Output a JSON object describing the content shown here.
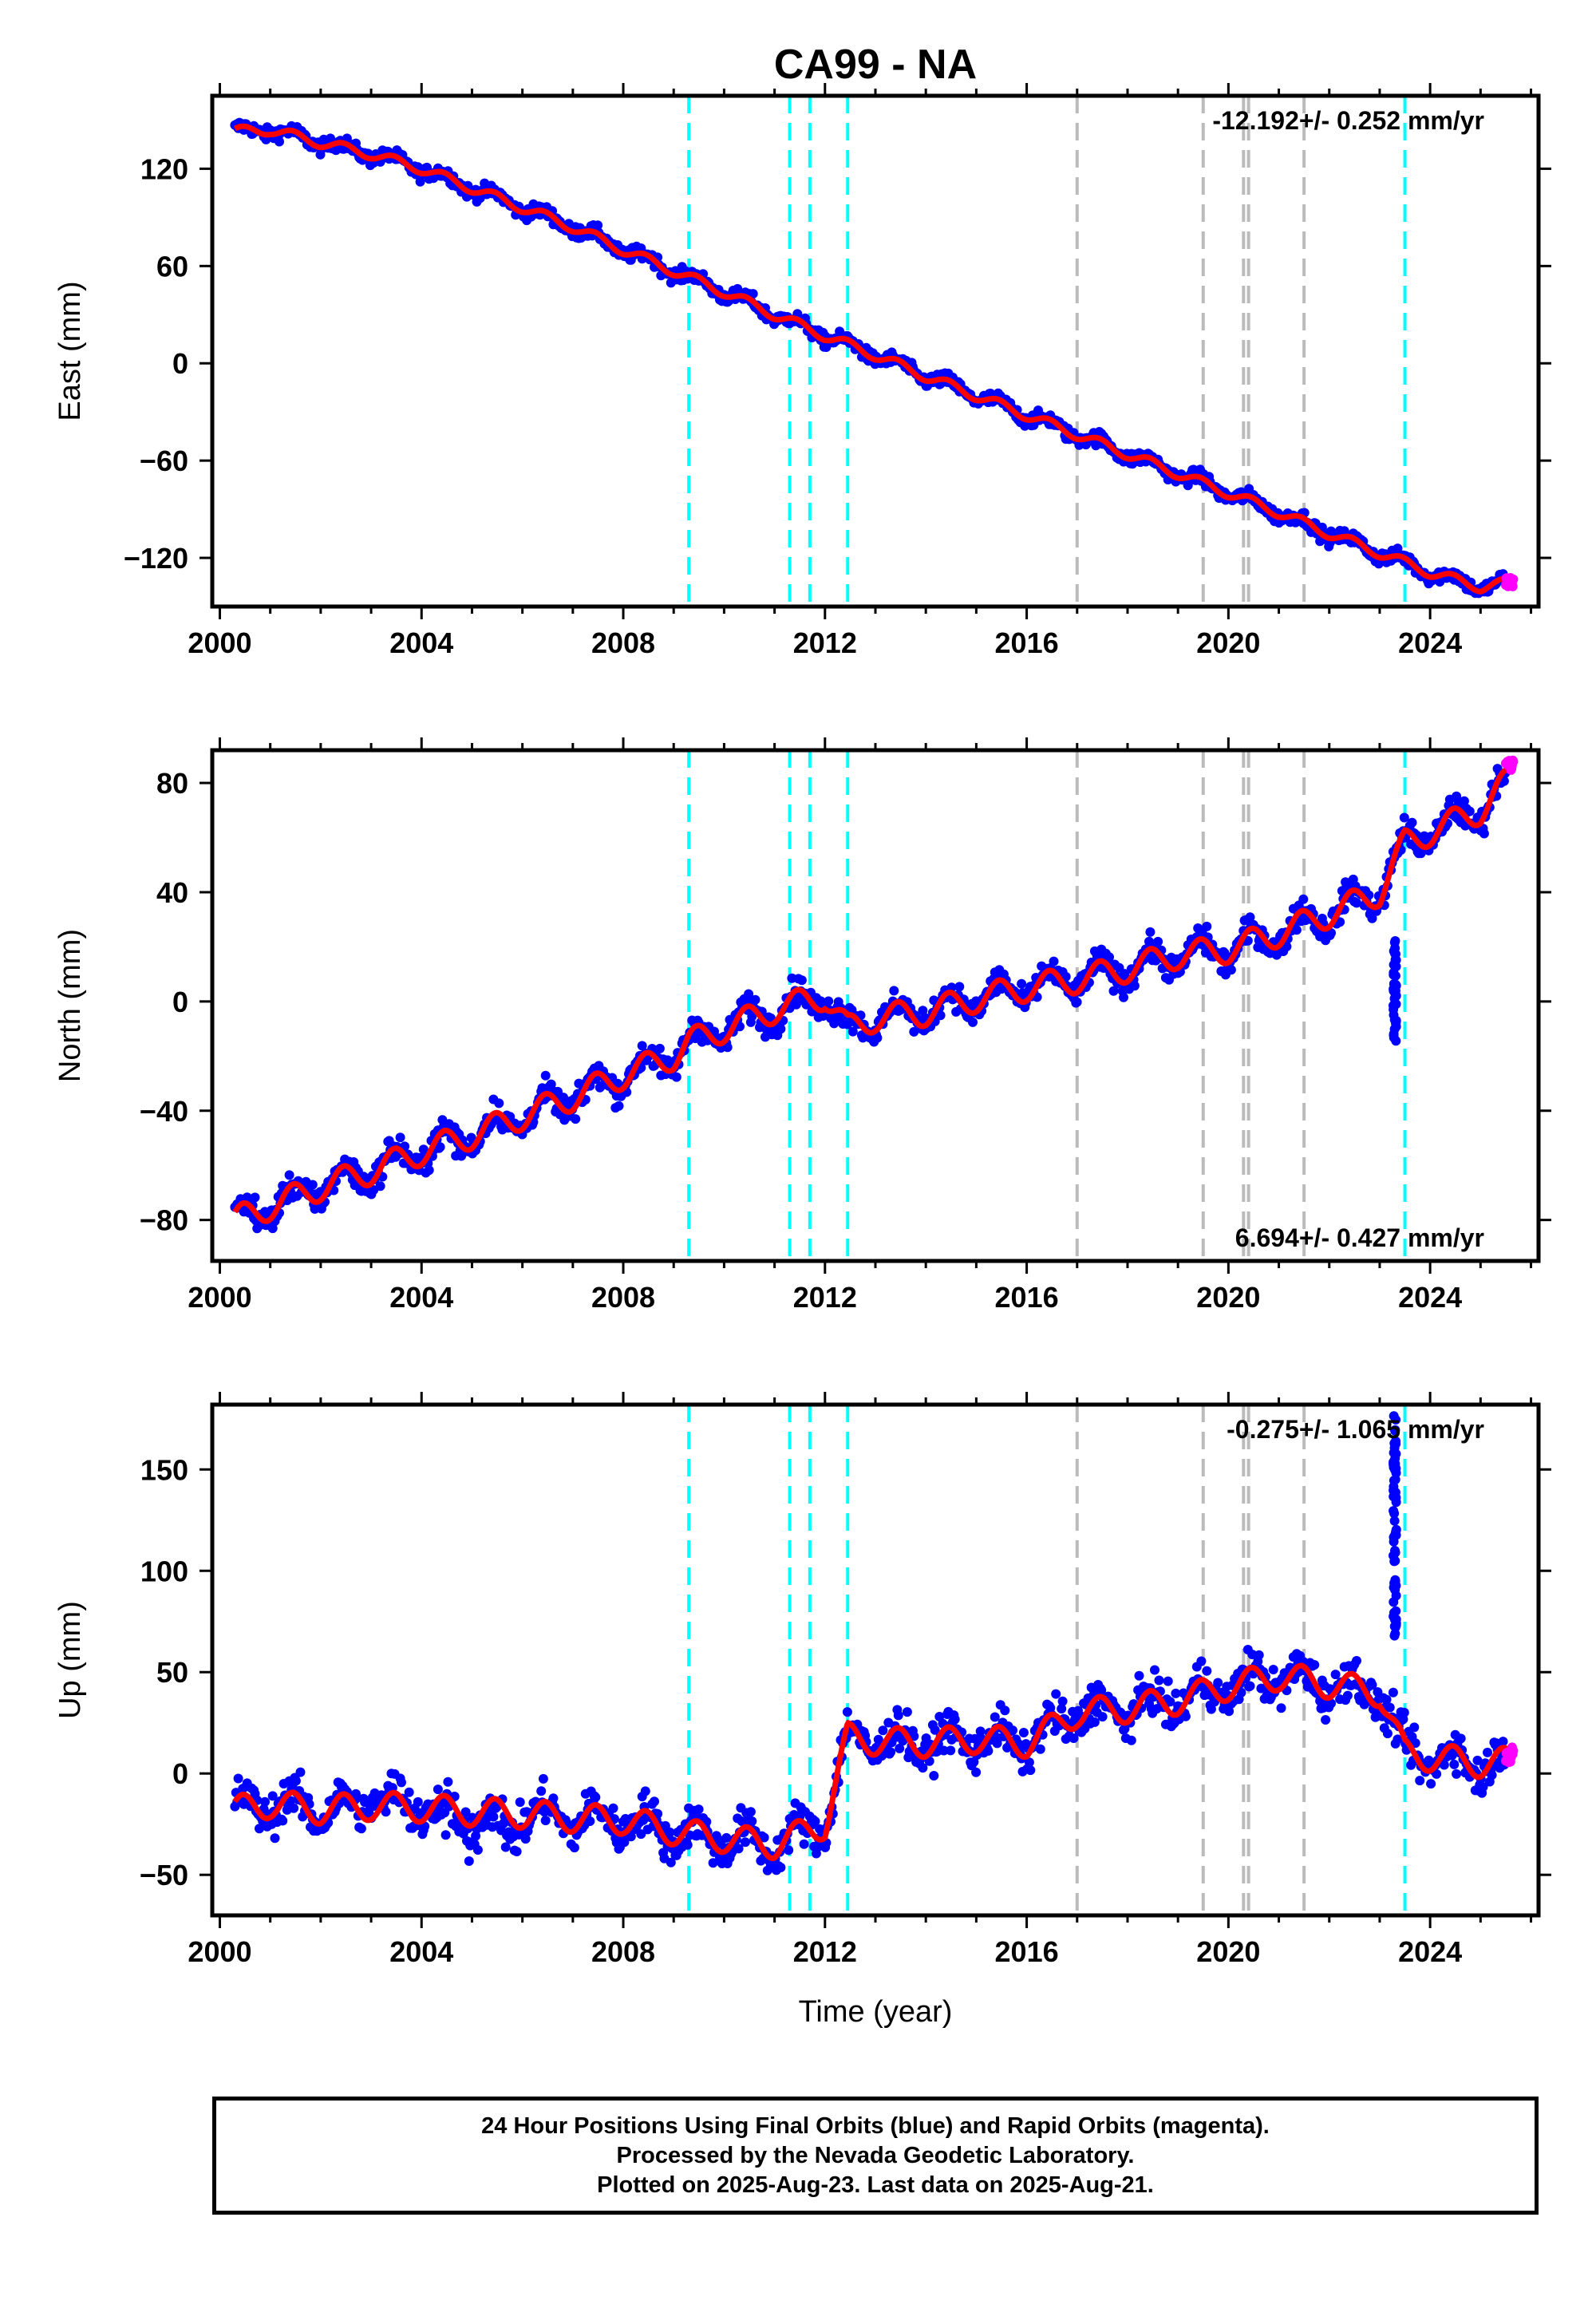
{
  "title": "CA99 - NA",
  "xlabel": "Time (year)",
  "colors": {
    "final_orbits": "#0000ff",
    "rapid_orbits": "#ff00ff",
    "model": "#ff0000",
    "equipment_change": "#00ffff",
    "earthquake": "#bbbbbb"
  },
  "event_lines": {
    "cyan": [
      2009.3,
      2011.3,
      2011.7,
      2012.45,
      2023.5
    ],
    "gray": [
      2017.0,
      2019.5,
      2020.3,
      2020.4,
      2021.5
    ]
  },
  "chart_data": [
    {
      "type": "scatter",
      "component": "east",
      "ylabel": "East (mm)",
      "rate": "-12.192+/- 0.252 mm/yr",
      "xlim": [
        1999.85,
        2026.15
      ],
      "ylim": [
        -150,
        165
      ],
      "xticks": [
        2000,
        2004,
        2008,
        2012,
        2016,
        2020,
        2024
      ],
      "yticks": [
        -120,
        -60,
        0,
        60,
        120
      ],
      "grid": false,
      "model": {
        "x": [
          2000.3,
          2001.0,
          2002.0,
          2003.0,
          2004.0,
          2005.0,
          2006.0,
          2007.0,
          2008.0,
          2009.0,
          2010.0,
          2011.0,
          2012.0,
          2013.0,
          2014.0,
          2015.0,
          2016.0,
          2017.0,
          2018.0,
          2019.0,
          2020.0,
          2021.0,
          2022.0,
          2023.0,
          2024.0,
          2025.0,
          2025.6
        ],
        "y": [
          143,
          144,
          136,
          129,
          120,
          108,
          96,
          84,
          70,
          57,
          44,
          30,
          17,
          5,
          -8,
          -20,
          -32,
          -44,
          -56,
          -68,
          -80,
          -92,
          -105,
          -117,
          -129,
          -138,
          -135
        ]
      },
      "seasonal_amplitude": 3,
      "noise": 3,
      "rapid": {
        "x": [
          2025.5,
          2025.65
        ],
        "y": [
          -132,
          -138
        ]
      }
    },
    {
      "type": "scatter",
      "component": "north",
      "ylabel": "North (mm)",
      "rate": "6.694+/- 0.427 mm/yr",
      "xlim": [
        1999.85,
        2026.15
      ],
      "ylim": [
        -95,
        92
      ],
      "xticks": [
        2000,
        2004,
        2008,
        2012,
        2016,
        2020,
        2024
      ],
      "yticks": [
        -80,
        -40,
        0,
        40,
        80
      ],
      "grid": false,
      "model": {
        "x": [
          2000.3,
          2001.0,
          2002.0,
          2003.0,
          2004.0,
          2005.0,
          2006.0,
          2007.0,
          2008.0,
          2009.0,
          2009.3,
          2010.0,
          2011.0,
          2012.0,
          2012.45,
          2013.0,
          2014.0,
          2015.0,
          2016.0,
          2017.0,
          2018.0,
          2019.0,
          2020.0,
          2021.0,
          2022.0,
          2023.0,
          2023.5,
          2024.0,
          2025.0,
          2025.6
        ],
        "y": [
          -80,
          -75,
          -68,
          -62,
          -55,
          -49,
          -42,
          -35,
          -27,
          -20,
          -15,
          -10,
          -3,
          2,
          -10,
          -6,
          -4,
          1,
          5,
          8,
          12,
          17,
          19,
          25,
          32,
          40,
          58,
          62,
          70,
          82
        ]
      },
      "seasonal_amplitude": 5,
      "noise": 3.5,
      "rapid": {
        "x": [
          2025.5,
          2025.65
        ],
        "y": [
          84,
          89
        ]
      }
    },
    {
      "type": "scatter",
      "component": "up",
      "ylabel": "Up (mm)",
      "rate": "-0.275+/- 1.065 mm/yr",
      "xlim": [
        1999.85,
        2026.15
      ],
      "ylim": [
        -70,
        182
      ],
      "xticks": [
        2000,
        2004,
        2008,
        2012,
        2016,
        2020,
        2024
      ],
      "yticks": [
        -50,
        0,
        50,
        100,
        150
      ],
      "grid": false,
      "model": {
        "x": [
          2000.3,
          2001.0,
          2002.0,
          2003.0,
          2004.0,
          2005.0,
          2006.0,
          2007.0,
          2008.0,
          2009.3,
          2010.0,
          2011.0,
          2012.0,
          2012.45,
          2013.0,
          2014.0,
          2015.0,
          2016.0,
          2017.0,
          2018.0,
          2019.0,
          2020.0,
          2021.0,
          2022.0,
          2023.0,
          2023.5,
          2024.0,
          2025.0,
          2025.6
        ],
        "y": [
          -18,
          -15,
          -18,
          -16,
          -17,
          -19,
          -20,
          -22,
          -23,
          -30,
          -32,
          -35,
          -25,
          18,
          16,
          15,
          17,
          15,
          30,
          32,
          36,
          43,
          48,
          44,
          40,
          10,
          8,
          5,
          6
        ]
      },
      "seasonal_amplitude": 7,
      "noise": 7,
      "rapid": {
        "x": [
          2025.5,
          2025.65
        ],
        "y": [
          3,
          14
        ]
      }
    }
  ],
  "footer": {
    "line1": "24 Hour Positions Using Final Orbits (blue) and Rapid Orbits (magenta).",
    "line2": "Processed by the Nevada Geodetic Laboratory.",
    "line3": "Plotted on 2025-Aug-23. Last data on 2025-Aug-21."
  }
}
